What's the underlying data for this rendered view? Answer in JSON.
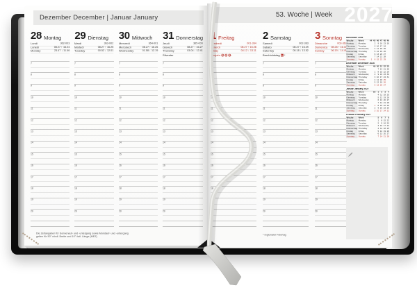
{
  "year": "2027",
  "header": {
    "left_title": "Dezember December | Januar January",
    "right_title": "53. Woche | Week"
  },
  "colors": {
    "accent_red": "#b8352c",
    "band_gray": "#e9e9e8",
    "cover_black": "#101010",
    "ribbon_silver": "#d9d9d5"
  },
  "hour_grid": {
    "hours": [
      "7",
      "8",
      "9",
      "10",
      "11",
      "12",
      "13",
      "14",
      "15",
      "16",
      "17",
      "18",
      "19",
      "20"
    ],
    "extra_lines": 2
  },
  "days": [
    {
      "page": "left",
      "num": "28",
      "name": "Montag",
      "red": false,
      "langs": [
        [
          "Lundi",
          "362-003"
        ],
        [
          "Lunedì",
          "08.27 ↑ 16.24"
        ],
        [
          "Monday",
          "23.47 ↓ 11.46"
        ]
      ],
      "note": null
    },
    {
      "page": "left",
      "num": "29",
      "name": "Dienstag",
      "red": false,
      "langs": [
        [
          "Mardi",
          "363-002"
        ],
        [
          "Martedì",
          "08.27 ↑ 16.25"
        ],
        [
          "Tuesday",
          "00.52 ↓ 12.01"
        ]
      ],
      "note": null
    },
    {
      "page": "left",
      "num": "30",
      "name": "Mittwoch",
      "red": false,
      "langs": [
        [
          "Mercredi",
          "364-001"
        ],
        [
          "Mercoledì",
          "08.27 ↑ 16.26"
        ],
        [
          "Wednesday",
          "01.58 ↓ 12.19"
        ]
      ],
      "note": null
    },
    {
      "page": "left",
      "num": "31",
      "name": "Donnerstag",
      "red": false,
      "langs": [
        [
          "Jeudi",
          "365-000"
        ],
        [
          "Giovedì",
          "08.27 ↑ 16.27"
        ],
        [
          "Thursday",
          "03.04 ↓ 12.41"
        ]
      ],
      "note": {
        "text": "Silvester",
        "red": false
      }
    },
    {
      "page": "right",
      "num": "1",
      "name": "Freitag",
      "red": true,
      "langs": [
        [
          "Vendredi",
          "001-364"
        ],
        [
          "Venerdì",
          "08.27 ↑ 16.28"
        ],
        [
          "Friday",
          "04.12 ↓ 13.11"
        ]
      ],
      "note": {
        "text": "Neujahr",
        "red": true,
        "badges": [
          "D",
          "A",
          "CH"
        ]
      }
    },
    {
      "page": "right",
      "num": "2",
      "name": "Samstag",
      "red": false,
      "langs": [
        [
          "Samedi",
          "002-363"
        ],
        [
          "Sabato",
          "08.27 ↑ 16.29"
        ],
        [
          "Saturday",
          "05.18 ↓ 13.52"
        ]
      ],
      "note": {
        "text": "Berchtoldstag",
        "red": false,
        "flag": true,
        "asterisk": true
      }
    },
    {
      "page": "right",
      "num": "3",
      "name": "Sonntag",
      "red": true,
      "narrow": true,
      "langs": [
        [
          "Dimanche",
          "003-362"
        ],
        [
          "Domenica",
          "08.26 ↑ 16.31"
        ],
        [
          "Sunday",
          "06.19 ↓ 14.45"
        ]
      ],
      "note": null
    }
  ],
  "sidebar": {
    "week_label_de": "Woche",
    "week_label_en": "Week",
    "calendars": [
      {
        "title": "November 2026",
        "weeks": [
          "44",
          "45",
          "46",
          "47",
          "48",
          "49"
        ],
        "rows": [
          {
            "de": "Montag",
            "en": "Monday",
            "cells": [
              "",
              "2",
              "9",
              "16",
              "23",
              "30"
            ]
          },
          {
            "de": "Dienstag",
            "en": "Tuesday",
            "cells": [
              "",
              "3",
              "10",
              "17",
              "24",
              ""
            ]
          },
          {
            "de": "Mittwoch",
            "en": "Wednesday",
            "cells": [
              "",
              "4",
              "11",
              "18",
              "25",
              ""
            ]
          },
          {
            "de": "Donnerstag",
            "en": "Thursday",
            "cells": [
              "",
              "5",
              "12",
              "19",
              "26",
              ""
            ]
          },
          {
            "de": "Freitag",
            "en": "Friday",
            "cells": [
              "",
              "6",
              "13",
              "20",
              "27",
              ""
            ]
          },
          {
            "de": "Samstag",
            "en": "Saturday",
            "cells": [
              "",
              "7",
              "14",
              "21",
              "28",
              ""
            ]
          },
          {
            "de": "Sonntag",
            "en": "Sunday",
            "red": true,
            "cells": [
              "1",
              "8",
              "15",
              "22",
              "29",
              ""
            ]
          }
        ]
      },
      {
        "title": "Dezember December 2026",
        "weeks": [
          "49",
          "50",
          "51",
          "52",
          "53"
        ],
        "rows": [
          {
            "de": "Montag",
            "en": "Monday",
            "cells": [
              "",
              "7",
              "14",
              "21",
              "28"
            ]
          },
          {
            "de": "Dienstag",
            "en": "Tuesday",
            "cells": [
              "1",
              "8",
              "15",
              "22",
              "29"
            ]
          },
          {
            "de": "Mittwoch",
            "en": "Wednesday",
            "cells": [
              "2",
              "9",
              "16",
              "23",
              "30"
            ]
          },
          {
            "de": "Donnerstag",
            "en": "Thursday",
            "cells": [
              "3",
              "10",
              "17",
              "24",
              "31"
            ]
          },
          {
            "de": "Freitag",
            "en": "Friday",
            "red_cells": [
              3
            ],
            "cells": [
              "4",
              "11",
              "18",
              "25",
              ""
            ]
          },
          {
            "de": "Samstag",
            "en": "Saturday",
            "red_cells": [
              3
            ],
            "cells": [
              "5",
              "12",
              "19",
              "26",
              ""
            ]
          },
          {
            "de": "Sonntag",
            "en": "Sunday",
            "red": true,
            "cells": [
              "6",
              "13",
              "20",
              "27",
              ""
            ]
          }
        ]
      },
      {
        "title": "Januar January 2027",
        "weeks": [
          "53",
          "1",
          "2",
          "3",
          "4"
        ],
        "rows": [
          {
            "de": "Montag",
            "en": "Monday",
            "cells": [
              "",
              "4",
              "11",
              "18",
              "25"
            ]
          },
          {
            "de": "Dienstag",
            "en": "Tuesday",
            "cells": [
              "",
              "5",
              "12",
              "19",
              "26"
            ]
          },
          {
            "de": "Mittwoch",
            "en": "Wednesday",
            "cells": [
              "",
              "6",
              "13",
              "20",
              "27"
            ]
          },
          {
            "de": "Donnerstag",
            "en": "Thursday",
            "cells": [
              "",
              "7",
              "14",
              "21",
              "28"
            ]
          },
          {
            "de": "Freitag",
            "en": "Friday",
            "red_cells": [
              0
            ],
            "cells": [
              "1",
              "8",
              "15",
              "22",
              "29"
            ]
          },
          {
            "de": "Samstag",
            "en": "Saturday",
            "cells": [
              "2",
              "9",
              "16",
              "23",
              "30"
            ]
          },
          {
            "de": "Sonntag",
            "en": "Sunday",
            "red": true,
            "cells": [
              "3",
              "10",
              "17",
              "24",
              "31"
            ]
          }
        ]
      },
      {
        "title": "Februar February 2027",
        "weeks": [
          "5",
          "6",
          "7",
          "8"
        ],
        "rows": [
          {
            "de": "Montag",
            "en": "Monday",
            "cells": [
              "1",
              "8",
              "15",
              "22"
            ]
          },
          {
            "de": "Dienstag",
            "en": "Tuesday",
            "cells": [
              "2",
              "9",
              "16",
              "23"
            ]
          },
          {
            "de": "Mittwoch",
            "en": "Wednesday",
            "cells": [
              "3",
              "10",
              "17",
              "24"
            ]
          },
          {
            "de": "Donnerstag",
            "en": "Thursday",
            "cells": [
              "4",
              "11",
              "18",
              "25"
            ]
          },
          {
            "de": "Freitag",
            "en": "Friday",
            "cells": [
              "5",
              "12",
              "19",
              "26"
            ]
          },
          {
            "de": "Samstag",
            "en": "Saturday",
            "cells": [
              "6",
              "13",
              "20",
              "27"
            ]
          },
          {
            "de": "Sonntag",
            "en": "Sunday",
            "red": true,
            "cells": [
              "7",
              "14",
              "21",
              "28"
            ]
          }
        ]
      }
    ]
  },
  "footnotes": {
    "left_line1": "Die Zeitangaben für Sonnenauf- und -untergang sowie Mondauf- und -untergang",
    "left_line2": "gelten für 50° nördl. Breite und 10° östl. Länge (MEZ)",
    "right": "* regionaler Feiertag"
  }
}
